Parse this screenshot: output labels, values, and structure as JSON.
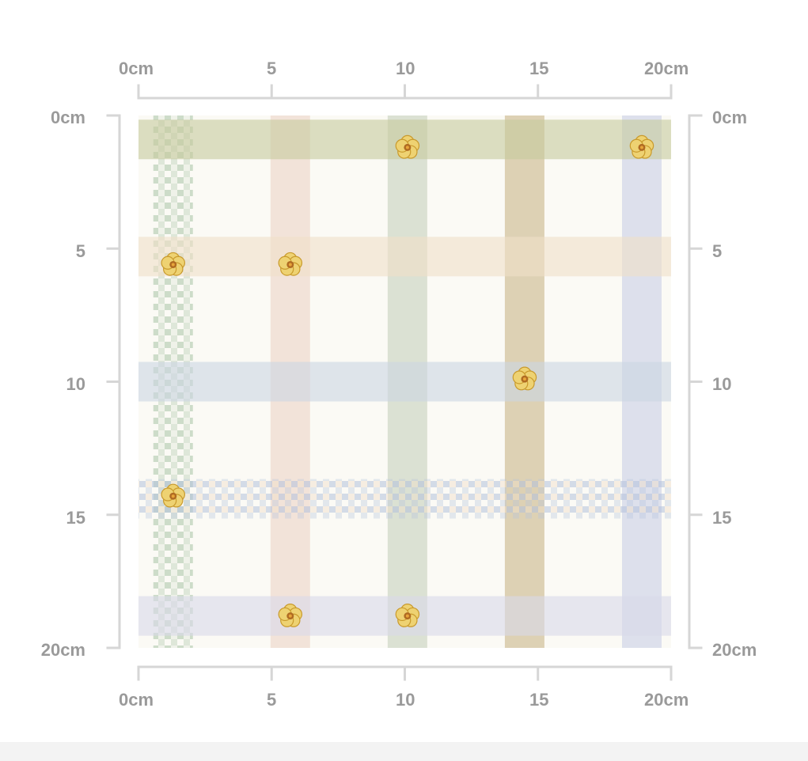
{
  "rulers": {
    "top": [
      "0cm",
      "5",
      "10",
      "15",
      "20cm"
    ],
    "bottom": [
      "0cm",
      "5",
      "10",
      "15",
      "20cm"
    ],
    "left": [
      "0cm",
      "5",
      "10",
      "15",
      "20cm"
    ],
    "right": [
      "0cm",
      "5",
      "10",
      "15",
      "20cm"
    ]
  },
  "pattern": {
    "background_color": "#fbfaf5",
    "vertical_stripes": [
      {
        "center_cm": 1.3,
        "color": "#a8c3a6",
        "style": "gingham"
      },
      {
        "center_cm": 5.7,
        "color": "#ecd3c6",
        "style": "solid"
      },
      {
        "center_cm": 10.1,
        "color": "#c7d0bc",
        "style": "solid"
      },
      {
        "center_cm": 14.5,
        "color": "#c9b589",
        "style": "solid"
      },
      {
        "center_cm": 18.9,
        "color": "#c9cfe6",
        "style": "solid"
      }
    ],
    "horizontal_stripes": [
      {
        "center_cm": 0.9,
        "color": "#c6c99c",
        "style": "solid"
      },
      {
        "center_cm": 5.3,
        "color": "#f0dfc8",
        "style": "solid"
      },
      {
        "center_cm": 10.0,
        "color": "#cbd6e2",
        "style": "solid"
      },
      {
        "center_cm": 14.4,
        "color": "#b3c1dc",
        "style": "gingham"
      },
      {
        "center_cm": 18.8,
        "color": "#d9d9e9",
        "style": "solid"
      }
    ],
    "flowers": [
      {
        "x_cm": 10.1,
        "y_cm": 1.2
      },
      {
        "x_cm": 18.9,
        "y_cm": 1.2
      },
      {
        "x_cm": 1.3,
        "y_cm": 5.6
      },
      {
        "x_cm": 5.7,
        "y_cm": 5.6
      },
      {
        "x_cm": 14.5,
        "y_cm": 9.9
      },
      {
        "x_cm": 1.3,
        "y_cm": 14.3
      },
      {
        "x_cm": 5.7,
        "y_cm": 18.8
      },
      {
        "x_cm": 10.1,
        "y_cm": 18.8
      }
    ],
    "flower_color": "#eed272",
    "flower_center_color": "#b06b22"
  },
  "colors": {
    "ruler": "#d6d6d6",
    "ruler_text": "#9a9a9a",
    "footer": "#f3f3f3"
  }
}
